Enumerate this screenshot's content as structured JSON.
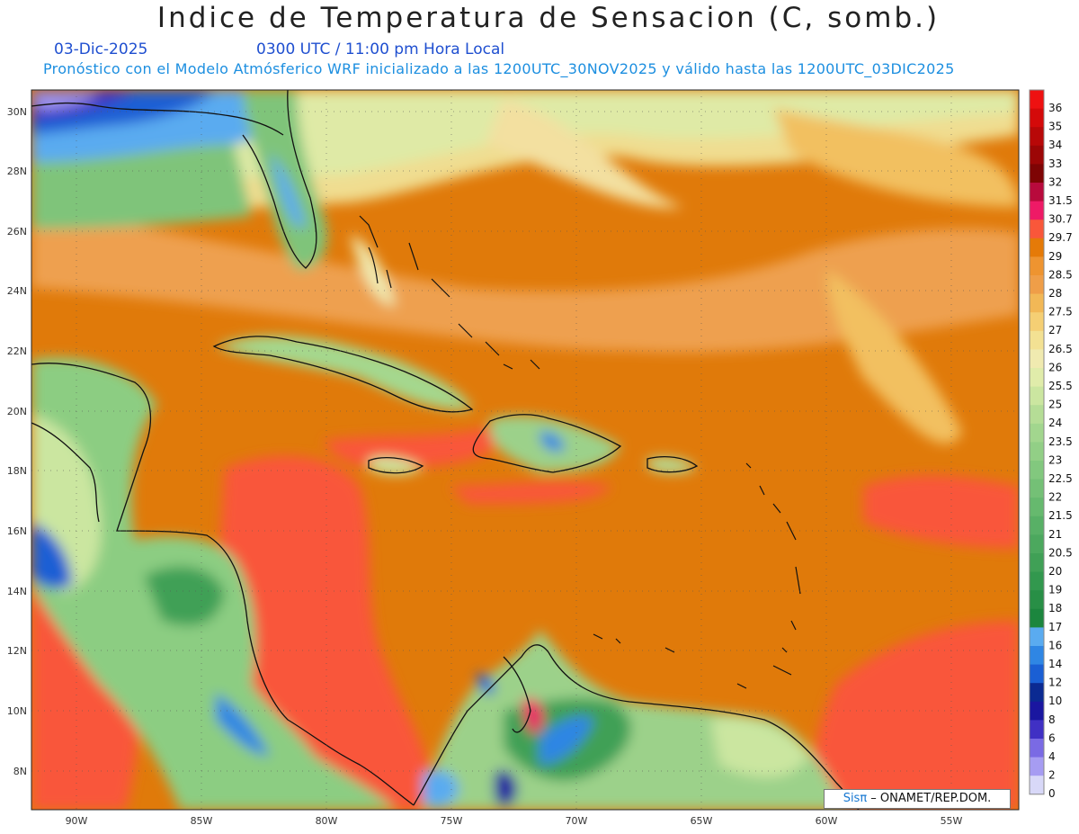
{
  "title": "Indice de Temperatura de Sensacion (C, somb.)",
  "date": "03-Dic-2025",
  "time": "0300 UTC / 11:00 pm Hora Local",
  "forecast": "Pronóstico con el Modelo Atmósferico WRF inicializado a las 1200UTC_30NOV2025 y válido hasta las  1200UTC_03DIC2025",
  "credit": {
    "sis": "Sisπ",
    "rest": " – ONAMET/REP.DOM."
  },
  "lon_labels": [
    "90W",
    "85W",
    "80W",
    "75W",
    "70W",
    "65W",
    "60W",
    "55W"
  ],
  "lat_labels": [
    "30N",
    "28N",
    "26N",
    "24N",
    "22N",
    "20N",
    "18N",
    "16N",
    "14N",
    "12N",
    "10N",
    "8N"
  ],
  "colorbar": {
    "labels": [
      "36",
      "35",
      "34",
      "33",
      "32",
      "31.5",
      "30.7",
      "29.7",
      "29",
      "28.5",
      "28",
      "27.5",
      "27",
      "26.5",
      "26",
      "25.5",
      "25",
      "24",
      "23.5",
      "23",
      "22.5",
      "22",
      "21.5",
      "21",
      "20.5",
      "20",
      "19",
      "18",
      "17",
      "16",
      "14",
      "12",
      "10",
      "8",
      "6",
      "4",
      "2",
      "0"
    ],
    "colors": [
      "#ee1111",
      "#d40a0a",
      "#b80808",
      "#9c0606",
      "#7e0404",
      "#b80a3c",
      "#ee1a66",
      "#f9573a",
      "#e57a08",
      "#ee9430",
      "#ef9e48",
      "#f2b856",
      "#f5cf74",
      "#f3e193",
      "#f0eab0",
      "#e0ecaa",
      "#cbe6a0",
      "#b5dd96",
      "#a2d68e",
      "#92cf86",
      "#82c87e",
      "#74c076",
      "#66b96e",
      "#58b066",
      "#4ca85e",
      "#40a056",
      "#32984e",
      "#288f46",
      "#1c863e",
      "#5aabf0",
      "#2f86e4",
      "#1a5fd4",
      "#0b2a92",
      "#1a16a0",
      "#4030c4",
      "#7a6ae4",
      "#a69cf2",
      "#d8d8f8"
    ]
  }
}
